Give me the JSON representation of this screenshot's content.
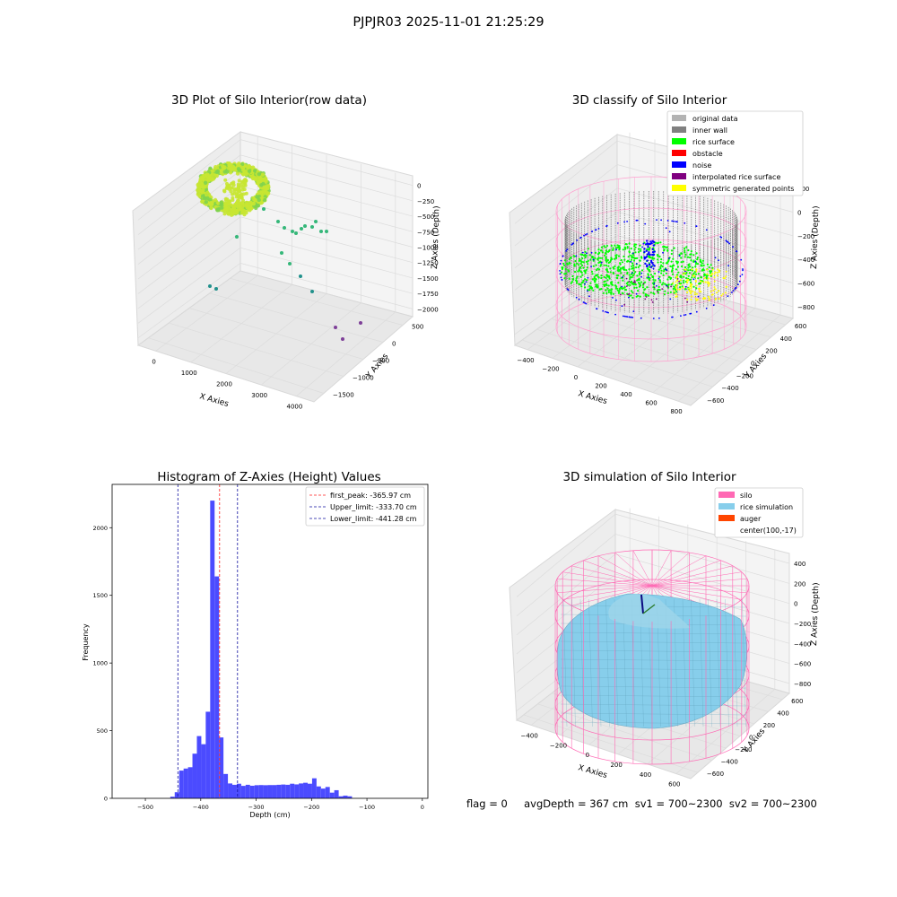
{
  "suptitle": "PJPJR03 2025-11-01 21:25:29",
  "footer": "flag = 0     avgDepth = 367 cm  sv1 = 700~2300  sv2 = 700~2300",
  "chart_data": [
    {
      "type": "scatter",
      "title": "3D Plot of Silo Interior(row data)",
      "xlabel": "X Axies",
      "ylabel": "Y Axies",
      "zlabel": "Z Axies (Depth)",
      "x_ticks": [
        "0",
        "1000",
        "2000",
        "3000",
        "4000"
      ],
      "y_ticks": [
        "−1500",
        "−1000",
        "−500",
        "0",
        "500"
      ],
      "z_ticks": [
        "0",
        "−250",
        "−500",
        "−750",
        "−1000",
        "−1250",
        "−1500",
        "−1750",
        "−2000"
      ],
      "colors": {
        "surface": "#c8e632",
        "surface_dark": "#7fd34e",
        "mid": "#35b779",
        "deep": "#21918c",
        "low": "#7e3f98"
      }
    },
    {
      "type": "scatter",
      "title": "3D classify of Silo Interior",
      "zlabel": "Z Axies (Depth)",
      "xlabel": "X Axies",
      "ylabel": "Y Axies",
      "x_ticks": [
        "−400",
        "−200",
        "0",
        "200",
        "400",
        "600",
        "800"
      ],
      "y_ticks": [
        "−600",
        "−400",
        "−200",
        "0",
        "200",
        "400",
        "600"
      ],
      "z_ticks": [
        "200",
        "0",
        "−200",
        "−400",
        "−600",
        "−800"
      ],
      "legend": [
        {
          "label": "original data",
          "color": "#b3b3b3"
        },
        {
          "label": "inner wall",
          "color": "#808080"
        },
        {
          "label": "rice surface",
          "color": "#00ff00"
        },
        {
          "label": "obstacle",
          "color": "#ff0000"
        },
        {
          "label": "noise",
          "color": "#0000ff"
        },
        {
          "label": "interpolated rice surface",
          "color": "#800080"
        },
        {
          "label": "symmetric generated points",
          "color": "#ffff00"
        }
      ],
      "legend_position": "top-right",
      "silo_color": "#ff9fcf"
    },
    {
      "type": "bar",
      "title": "Histogram of Z-Axies (Height) Values",
      "xlabel": "Depth (cm)",
      "ylabel": "Frequency",
      "xlim": [
        -560,
        10
      ],
      "ylim": [
        0,
        2320
      ],
      "x_ticks": [
        -500,
        -400,
        -300,
        -200,
        -100,
        0
      ],
      "x_tick_labels": [
        "−500",
        "−400",
        "−300",
        "−200",
        "−100",
        "0"
      ],
      "y_ticks": [
        0,
        500,
        1000,
        1500,
        2000
      ],
      "bin_start": -455,
      "bin_width": 8,
      "values": [
        12,
        45,
        205,
        220,
        230,
        330,
        460,
        400,
        640,
        2200,
        1640,
        450,
        180,
        110,
        100,
        108,
        92,
        100,
        93,
        97,
        98,
        97,
        98,
        98,
        100,
        102,
        100,
        108,
        103,
        110,
        115,
        108,
        148,
        88,
        72,
        84,
        42,
        60,
        15,
        20,
        15
      ],
      "bar_color": "#4b4bff",
      "lines": [
        {
          "label": "first_peak: -365.97 cm",
          "value": -365.97,
          "color": "#ff2020"
        },
        {
          "label": "Upper_limit: -333.70 cm",
          "value": -333.7,
          "color": "#1010a0"
        },
        {
          "label": "Lower_limit: -441.28 cm",
          "value": -441.28,
          "color": "#1010a0"
        }
      ],
      "legend_position": "top-right"
    },
    {
      "type": "scatter",
      "title": "3D simulation of Silo Interior",
      "xlabel": "X Axies",
      "ylabel": "Y Axies",
      "zlabel": "Z Axies (Depth)",
      "x_ticks": [
        "−400",
        "−200",
        "0",
        "200",
        "400",
        "600"
      ],
      "y_ticks": [
        "−600",
        "−400",
        "−200",
        "0",
        "200",
        "400",
        "600"
      ],
      "z_ticks": [
        "400",
        "200",
        "0",
        "−200",
        "−400",
        "−600",
        "−800"
      ],
      "legend": [
        {
          "label": "silo",
          "color": "#ff69b4"
        },
        {
          "label": "rice simulation",
          "color": "#87ceeb"
        },
        {
          "label": "auger",
          "color": "#ff4500"
        },
        {
          "label": "center(100,-17)",
          "color": ""
        }
      ],
      "legend_position": "top-right"
    }
  ]
}
